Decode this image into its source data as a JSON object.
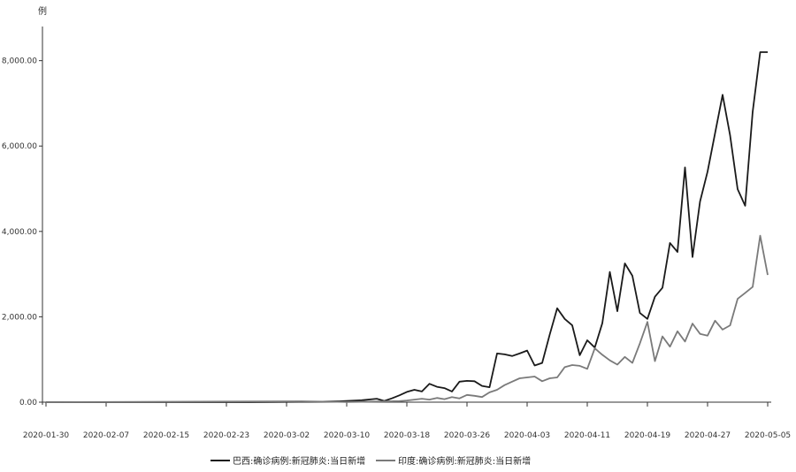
{
  "chart_data": {
    "type": "line",
    "unit_label": "例",
    "x_tick_labels": [
      "2020-01-30",
      "2020-02-07",
      "2020-02-15",
      "2020-02-23",
      "2020-03-02",
      "2020-03-10",
      "2020-03-18",
      "2020-03-26",
      "2020-04-03",
      "2020-04-11",
      "2020-04-19",
      "2020-04-27",
      "2020-05-05"
    ],
    "y_tick_labels": [
      "0.00",
      "2,000.00",
      "4,000.00",
      "6,000.00",
      "8,000.00"
    ],
    "y_ticks": [
      0,
      2000,
      4000,
      6000,
      8000
    ],
    "ylim": [
      0,
      8800
    ],
    "x_start": "2020-01-30",
    "x_end": "2020-05-05",
    "grid": false,
    "legend_position": "bottom",
    "series": [
      {
        "name": "巴西:确诊病例:新冠肺炎:当日新增",
        "color": "#1a1a1a",
        "x": [
          "2020-01-30",
          "2020-02-26",
          "2020-03-06",
          "2020-03-09",
          "2020-03-12",
          "2020-03-14",
          "2020-03-15",
          "2020-03-16",
          "2020-03-17",
          "2020-03-18",
          "2020-03-19",
          "2020-03-20",
          "2020-03-21",
          "2020-03-22",
          "2020-03-23",
          "2020-03-24",
          "2020-03-25",
          "2020-03-26",
          "2020-03-27",
          "2020-03-28",
          "2020-03-29",
          "2020-03-30",
          "2020-03-31",
          "2020-04-01",
          "2020-04-02",
          "2020-04-03",
          "2020-04-04",
          "2020-04-05",
          "2020-04-06",
          "2020-04-07",
          "2020-04-08",
          "2020-04-09",
          "2020-04-10",
          "2020-04-11",
          "2020-04-12",
          "2020-04-13",
          "2020-04-14",
          "2020-04-15",
          "2020-04-16",
          "2020-04-17",
          "2020-04-18",
          "2020-04-19",
          "2020-04-20",
          "2020-04-21",
          "2020-04-22",
          "2020-04-23",
          "2020-04-24",
          "2020-04-25",
          "2020-04-26",
          "2020-04-27",
          "2020-04-28",
          "2020-04-29",
          "2020-04-30",
          "2020-05-01",
          "2020-05-02",
          "2020-05-03",
          "2020-05-04",
          "2020-05-05"
        ],
        "values": [
          0,
          1,
          10,
          20,
          45,
          80,
          30,
          90,
          160,
          240,
          290,
          250,
          430,
          360,
          330,
          250,
          480,
          500,
          490,
          380,
          350,
          1140,
          1120,
          1080,
          1140,
          1210,
          860,
          920,
          1580,
          2200,
          1950,
          1800,
          1100,
          1450,
          1280,
          1850,
          3050,
          2130,
          3250,
          2960,
          2090,
          1950,
          2470,
          2680,
          3730,
          3520,
          5500,
          3400,
          4700,
          5400,
          6300,
          7200,
          6250,
          4990,
          4600,
          6800,
          8200,
          8200
        ]
      },
      {
        "name": "印度:确诊病例:新冠肺炎:当日新增",
        "color": "#7a7a7a",
        "x": [
          "2020-01-30",
          "2020-03-04",
          "2020-03-10",
          "2020-03-14",
          "2020-03-17",
          "2020-03-18",
          "2020-03-19",
          "2020-03-20",
          "2020-03-21",
          "2020-03-22",
          "2020-03-23",
          "2020-03-24",
          "2020-03-25",
          "2020-03-26",
          "2020-03-27",
          "2020-03-28",
          "2020-03-29",
          "2020-03-30",
          "2020-03-31",
          "2020-04-01",
          "2020-04-02",
          "2020-04-03",
          "2020-04-04",
          "2020-04-05",
          "2020-04-06",
          "2020-04-07",
          "2020-04-08",
          "2020-04-09",
          "2020-04-10",
          "2020-04-11",
          "2020-04-12",
          "2020-04-13",
          "2020-04-14",
          "2020-04-15",
          "2020-04-16",
          "2020-04-17",
          "2020-04-18",
          "2020-04-19",
          "2020-04-20",
          "2020-04-21",
          "2020-04-22",
          "2020-04-23",
          "2020-04-24",
          "2020-04-25",
          "2020-04-26",
          "2020-04-27",
          "2020-04-28",
          "2020-04-29",
          "2020-04-30",
          "2020-05-01",
          "2020-05-02",
          "2020-05-03",
          "2020-05-04",
          "2020-05-05"
        ],
        "values": [
          0,
          20,
          5,
          15,
          25,
          40,
          60,
          80,
          60,
          100,
          70,
          120,
          90,
          170,
          150,
          120,
          230,
          290,
          400,
          480,
          560,
          580,
          600,
          490,
          560,
          580,
          820,
          870,
          850,
          780,
          1260,
          1110,
          980,
          880,
          1060,
          920,
          1380,
          1880,
          960,
          1540,
          1300,
          1660,
          1420,
          1840,
          1600,
          1560,
          1910,
          1700,
          1800,
          2420,
          2560,
          2700,
          3900,
          2980
        ]
      }
    ]
  }
}
